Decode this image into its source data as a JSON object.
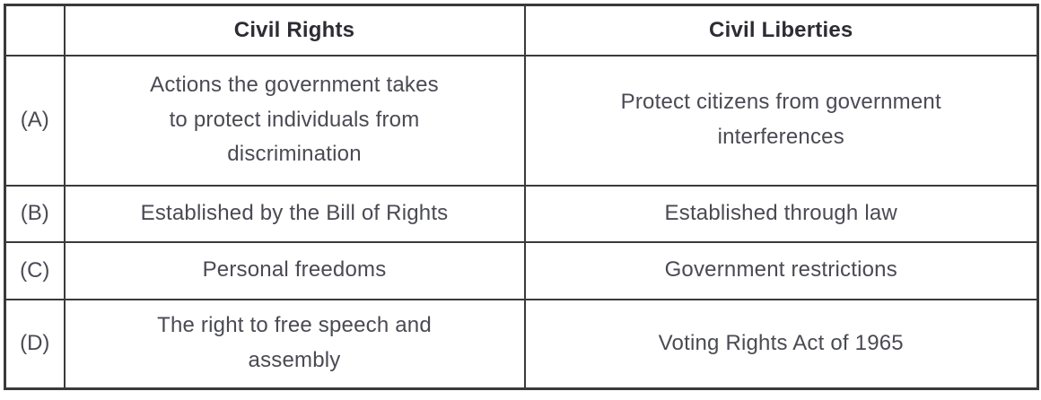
{
  "table": {
    "header": {
      "label_col": "",
      "civil_rights": "Civil Rights",
      "civil_liberties": "Civil Liberties"
    },
    "rows": [
      {
        "label": "(A)",
        "civil_rights": "Actions the government takes\nto protect individuals from\ndiscrimination",
        "civil_liberties": "Protect citizens from government\ninterferences"
      },
      {
        "label": "(B)",
        "civil_rights": "Established by the Bill of Rights",
        "civil_liberties": "Established through law"
      },
      {
        "label": "(C)",
        "civil_rights": "Personal freedoms",
        "civil_liberties": "Government restrictions"
      },
      {
        "label": "(D)",
        "civil_rights": "The right to free speech and\nassembly",
        "civil_liberties": "Voting Rights Act of 1965"
      }
    ]
  },
  "colors": {
    "border": "#3a3a3a",
    "header_text": "#2c2c34",
    "body_text": "#4a4a54",
    "background": "#ffffff"
  }
}
